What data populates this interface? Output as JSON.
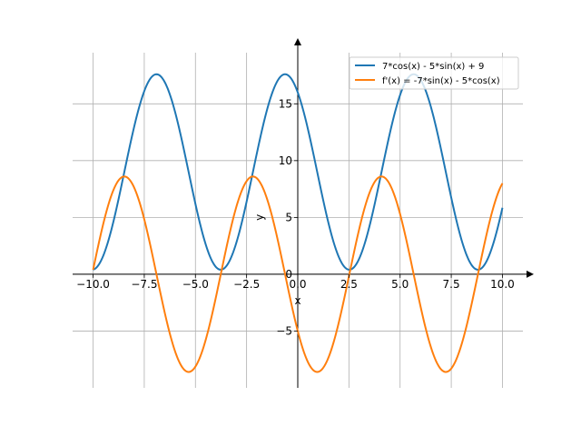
{
  "chart_data": {
    "type": "line",
    "title": "",
    "xlabel": "x",
    "ylabel": "y",
    "xlim": [
      -11.0,
      11.0
    ],
    "ylim": [
      -10.0,
      19.5
    ],
    "grid": true,
    "legend_position": "top-right",
    "x_ticks": [
      -10.0,
      -7.5,
      -5.0,
      -2.5,
      0.0,
      2.5,
      5.0,
      7.5,
      10.0
    ],
    "x_tick_labels": [
      "−10.0",
      "−7.5",
      "−5.0",
      "−2.5",
      "0.0",
      "2.5",
      "5.0",
      "7.5",
      "10.0"
    ],
    "y_ticks": [
      -5,
      0,
      5,
      10,
      15
    ],
    "y_tick_labels": [
      "−5",
      "0",
      "5",
      "10",
      "15"
    ],
    "x_range": [
      -10,
      10
    ],
    "series": [
      {
        "name": "7*cos(x) - 5*sin(x) + 9",
        "color": "#1f77b4",
        "function": "7*cos(x) - 5*sin(x) + 9"
      },
      {
        "name": "f'(x) = -7*sin(x) - 5*cos(x)",
        "color": "#ff7f0e",
        "function": "-7*sin(x) - 5*cos(x)"
      }
    ]
  }
}
